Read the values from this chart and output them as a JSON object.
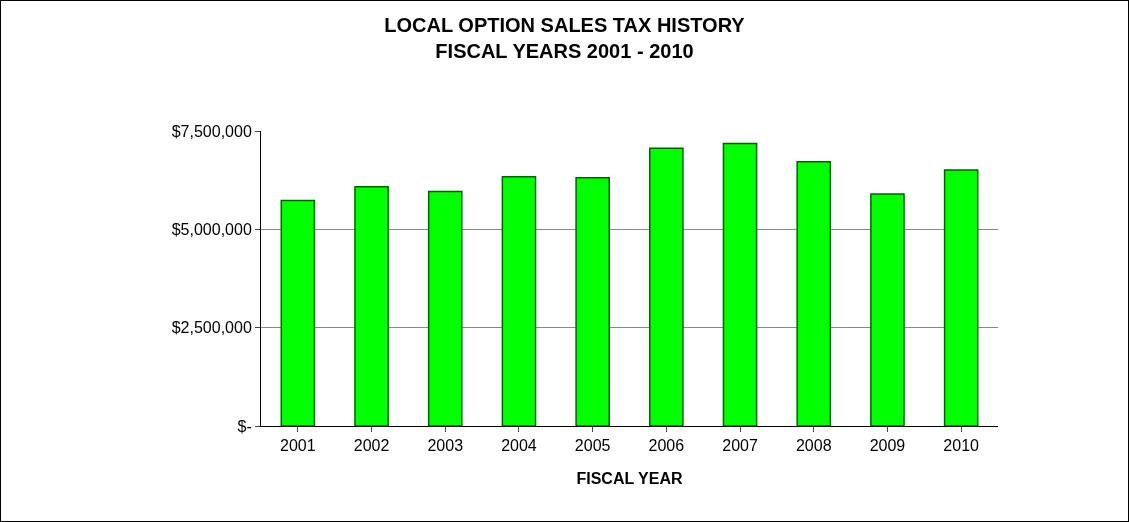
{
  "chart_data": {
    "type": "bar",
    "title": "LOCAL OPTION SALES TAX HISTORY\nFISCAL YEARS 2001 - 2010",
    "xlabel": "FISCAL YEAR",
    "categories": [
      "2001",
      "2002",
      "2003",
      "2004",
      "2005",
      "2006",
      "2007",
      "2008",
      "2009",
      "2010"
    ],
    "values": [
      5730000,
      6080000,
      5960000,
      6340000,
      6310000,
      7060000,
      7180000,
      6720000,
      5900000,
      6510000
    ],
    "color": "#00ff00",
    "ylim": [
      0,
      7500000
    ],
    "yticks": [
      {
        "value": 0,
        "label": "$-"
      },
      {
        "value": 2500000,
        "label": "$2,500,000"
      },
      {
        "value": 5000000,
        "label": "$5,000,000"
      },
      {
        "value": 7500000,
        "label": "$7,500,000"
      }
    ],
    "grid": "y"
  }
}
